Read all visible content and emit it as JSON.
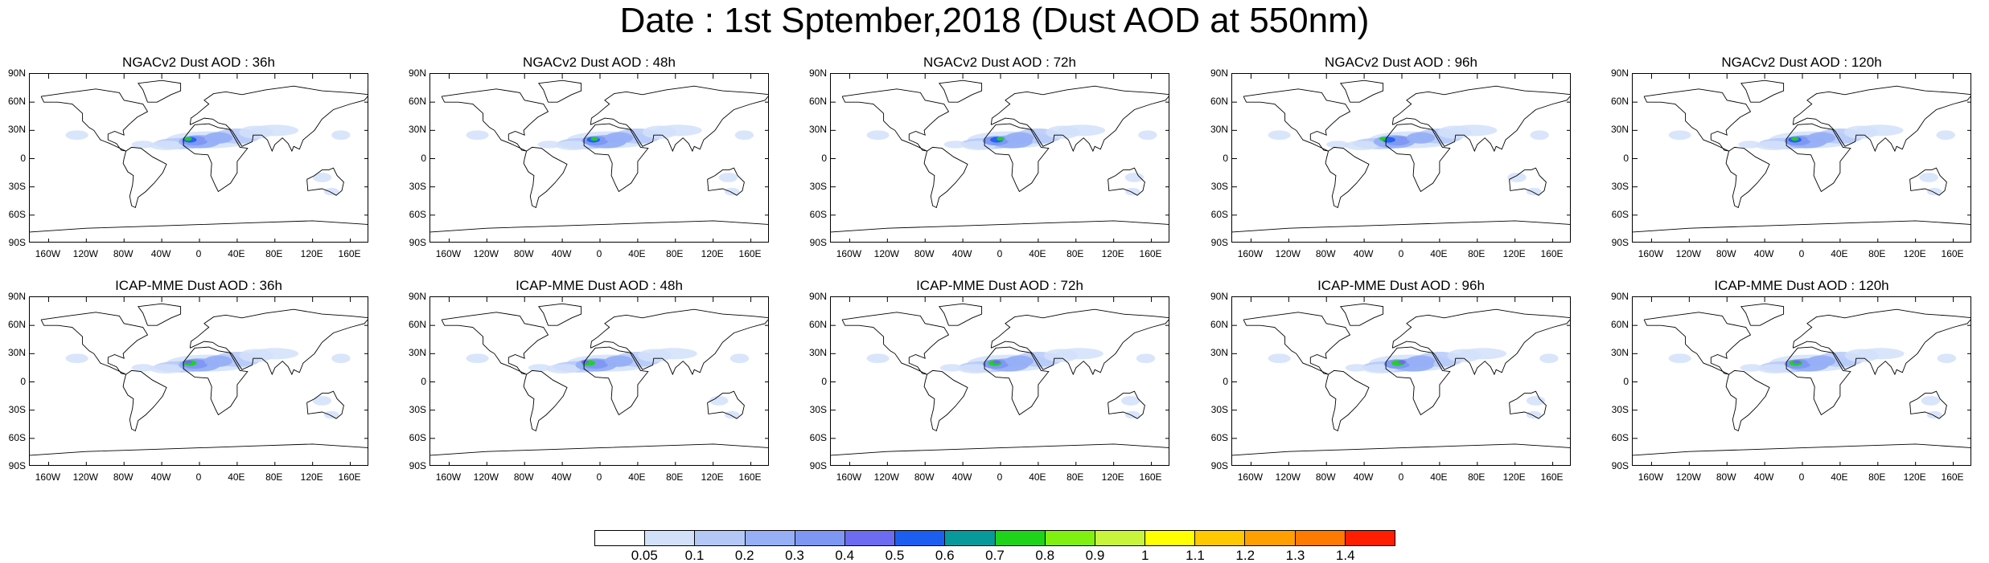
{
  "title": "Date : 1st Sptember,2018 (Dust AOD at 550nm)",
  "lat_ticks": [
    "90N",
    "60N",
    "30N",
    "0",
    "30S",
    "60S",
    "90S"
  ],
  "lon_ticks": [
    "160W",
    "120W",
    "80W",
    "40W",
    "0",
    "40E",
    "80E",
    "120E",
    "160E"
  ],
  "panels": [
    {
      "title": "NGACv2 Dust AOD : 36h"
    },
    {
      "title": "NGACv2 Dust AOD : 48h"
    },
    {
      "title": "NGACv2 Dust AOD : 72h"
    },
    {
      "title": "NGACv2 Dust AOD : 96h"
    },
    {
      "title": "NGACv2 Dust AOD : 120h"
    },
    {
      "title": "ICAP-MME Dust AOD : 36h"
    },
    {
      "title": "ICAP-MME Dust AOD : 48h"
    },
    {
      "title": "ICAP-MME Dust AOD : 72h"
    },
    {
      "title": "ICAP-MME Dust AOD : 96h"
    },
    {
      "title": "ICAP-MME Dust AOD : 120h"
    }
  ],
  "colorbar": {
    "labels": [
      "0.05",
      "0.1",
      "0.2",
      "0.3",
      "0.4",
      "0.5",
      "0.6",
      "0.7",
      "0.8",
      "0.9",
      "1",
      "1.1",
      "1.2",
      "1.3",
      "1.4"
    ],
    "colors": [
      "#ffffff",
      "#d2e0fa",
      "#b4c8f8",
      "#96aff6",
      "#7d97f3",
      "#6d6bef",
      "#1c5ff0",
      "#089a9a",
      "#1fd21a",
      "#7ff00f",
      "#c8f53c",
      "#ffff00",
      "#ffc800",
      "#ffa000",
      "#ff7a00",
      "#ff1e00"
    ]
  }
}
